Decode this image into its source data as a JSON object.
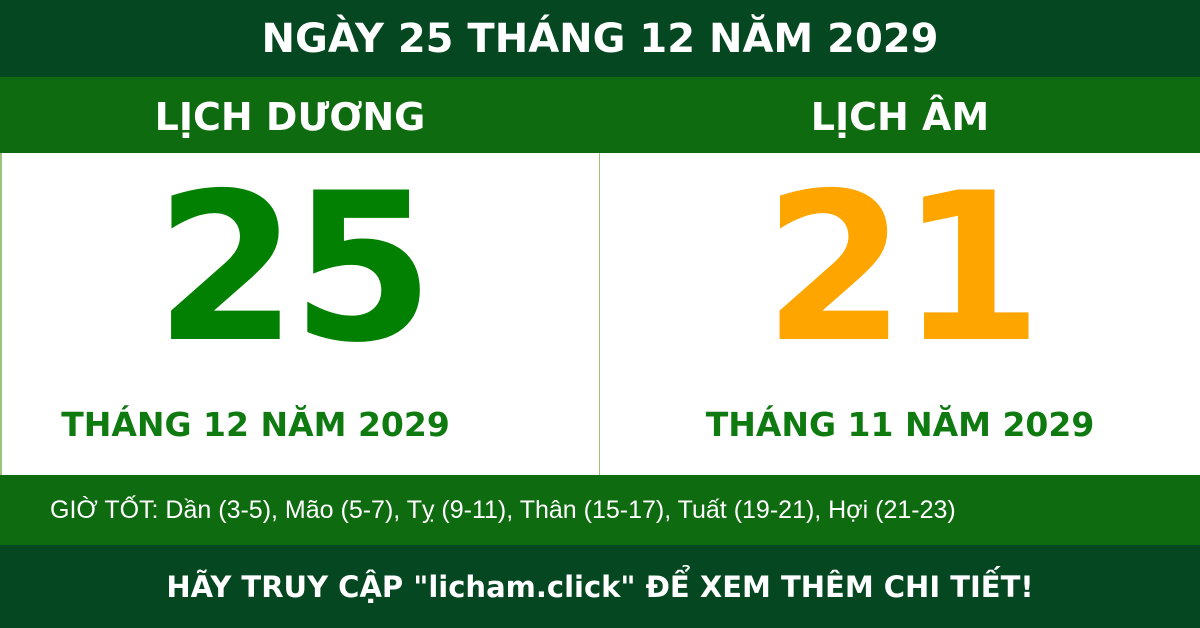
{
  "title": "NGÀY 25 THÁNG 12 NĂM 2029",
  "solar": {
    "heading": "LỊCH DƯƠNG",
    "day": "25",
    "month_year": "THÁNG 12 NĂM 2029"
  },
  "lunar": {
    "heading": "LỊCH ÂM",
    "day": "21",
    "month_year": "THÁNG 11 NĂM 2029"
  },
  "good_hours": "GIỜ TỐT: Dần (3-5), Mão (5-7), Tỵ (9-11), Thân (15-17), Tuất (19-21), Hợi (21-23)",
  "footer": "HÃY TRUY CẬP \"licham.click\" ĐỂ XEM THÊM CHI TIẾT!",
  "colors": {
    "dark_green": "#044721",
    "green": "#0f6b10",
    "solar_day": "#028002",
    "lunar_day": "#fea500"
  }
}
